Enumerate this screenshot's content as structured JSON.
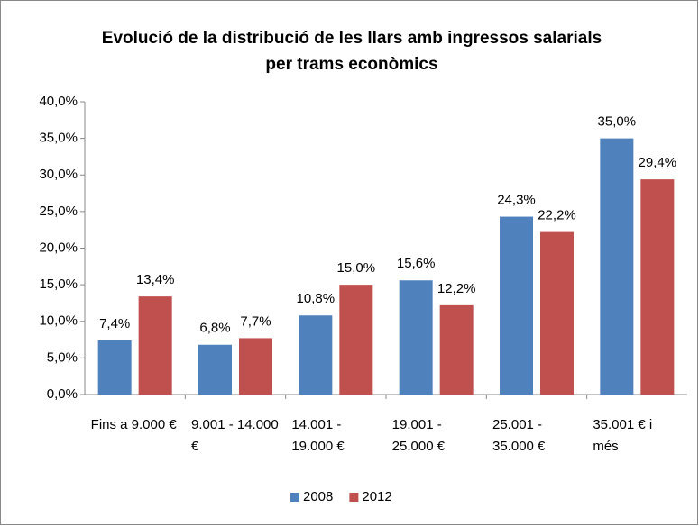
{
  "chart_data": {
    "type": "bar",
    "title": "Evolució de la distribució de les llars amb ingressos salarials per trams econòmics",
    "categories": [
      "Fins a 9.000 €",
      "9.001 - 14.000 €",
      "14.001 - 19.000 €",
      "19.001 - 25.000 €",
      "25.001 - 35.000 €",
      "35.001 € i més"
    ],
    "series": [
      {
        "name": "2008",
        "color": "#4f81bd",
        "values": [
          7.4,
          6.8,
          10.8,
          15.6,
          24.3,
          35.0
        ],
        "value_labels": [
          "7,4%",
          "6,8%",
          "10,8%",
          "15,6%",
          "24,3%",
          "35,0%"
        ]
      },
      {
        "name": "2012",
        "color": "#c0504d",
        "values": [
          13.4,
          7.7,
          15.0,
          12.2,
          22.2,
          29.4
        ],
        "value_labels": [
          "13,4%",
          "7,7%",
          "15,0%",
          "12,2%",
          "22,2%",
          "29,4%"
        ]
      }
    ],
    "ylim": [
      0,
      40
    ],
    "yticks": [
      {
        "value": 0,
        "label": "0,0%"
      },
      {
        "value": 5,
        "label": "5,0%"
      },
      {
        "value": 10,
        "label": "10,0%"
      },
      {
        "value": 15,
        "label": "15,0%"
      },
      {
        "value": 20,
        "label": "20,0%"
      },
      {
        "value": 25,
        "label": "25,0%"
      },
      {
        "value": 30,
        "label": "30,0%"
      },
      {
        "value": 35,
        "label": "35,0%"
      },
      {
        "value": 40,
        "label": "40,0%"
      }
    ],
    "grid": false,
    "legend": "bottom"
  }
}
